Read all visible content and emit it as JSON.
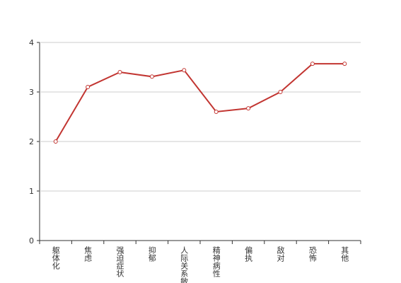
{
  "chart_data": {
    "type": "line",
    "categories": [
      "躯体化",
      "焦虑",
      "强迫症状",
      "抑郁",
      "人际关系敏感",
      "精神病性",
      "偏执",
      "敌对",
      "恐怖",
      "其他"
    ],
    "values": [
      2.0,
      3.1,
      3.4,
      3.31,
      3.44,
      2.6,
      2.67,
      3.0,
      3.57,
      3.57
    ],
    "color": "#c23531",
    "ylim": [
      0,
      4
    ],
    "yticks": [
      0,
      1,
      2,
      3,
      4
    ],
    "grid": true
  }
}
